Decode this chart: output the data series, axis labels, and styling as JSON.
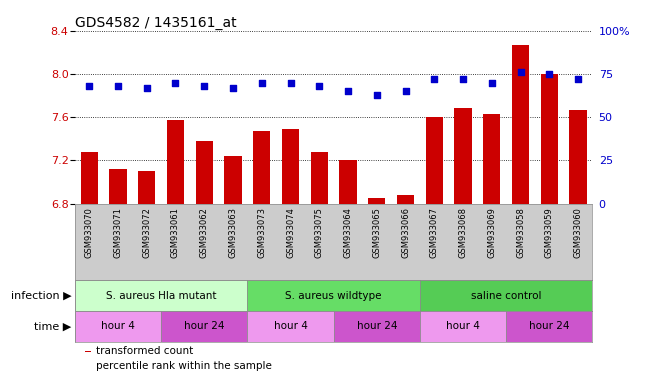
{
  "title": "GDS4582 / 1435161_at",
  "samples": [
    "GSM933070",
    "GSM933071",
    "GSM933072",
    "GSM933061",
    "GSM933062",
    "GSM933063",
    "GSM933073",
    "GSM933074",
    "GSM933075",
    "GSM933064",
    "GSM933065",
    "GSM933066",
    "GSM933067",
    "GSM933068",
    "GSM933069",
    "GSM933058",
    "GSM933059",
    "GSM933060"
  ],
  "bar_values": [
    7.28,
    7.12,
    7.1,
    7.57,
    7.38,
    7.24,
    7.47,
    7.49,
    7.28,
    7.2,
    6.85,
    6.88,
    7.6,
    7.68,
    7.63,
    8.27,
    8.0,
    7.67
  ],
  "dot_values": [
    68,
    68,
    67,
    70,
    68,
    67,
    70,
    70,
    68,
    65,
    63,
    65,
    72,
    72,
    70,
    76,
    75,
    72
  ],
  "ylim_left": [
    6.8,
    8.4
  ],
  "ylim_right": [
    0,
    100
  ],
  "yticks_left": [
    6.8,
    7.2,
    7.6,
    8.0,
    8.4
  ],
  "yticks_right": [
    0,
    25,
    50,
    75,
    100
  ],
  "ytick_labels_right": [
    "0",
    "25",
    "50",
    "75",
    "100%"
  ],
  "bar_color": "#cc0000",
  "dot_color": "#0000cc",
  "background_color": "#ffffff",
  "grid_color": "#000000",
  "infection_groups": [
    {
      "label": "S. aureus Hla mutant",
      "start": 0,
      "end": 6,
      "color": "#ccffcc"
    },
    {
      "label": "S. aureus wildtype",
      "start": 6,
      "end": 12,
      "color": "#66dd66"
    },
    {
      "label": "saline control",
      "start": 12,
      "end": 18,
      "color": "#55cc55"
    }
  ],
  "time_groups": [
    {
      "label": "hour 4",
      "start": 0,
      "end": 3,
      "color": "#ee99ee"
    },
    {
      "label": "hour 24",
      "start": 3,
      "end": 6,
      "color": "#cc55cc"
    },
    {
      "label": "hour 4",
      "start": 6,
      "end": 9,
      "color": "#ee99ee"
    },
    {
      "label": "hour 24",
      "start": 9,
      "end": 12,
      "color": "#cc55cc"
    },
    {
      "label": "hour 4",
      "start": 12,
      "end": 15,
      "color": "#ee99ee"
    },
    {
      "label": "hour 24",
      "start": 15,
      "end": 18,
      "color": "#cc55cc"
    }
  ],
  "infection_label": "infection",
  "time_label": "time",
  "legend_items": [
    {
      "label": "transformed count",
      "color": "#cc0000"
    },
    {
      "label": "percentile rank within the sample",
      "color": "#0000cc"
    }
  ],
  "tick_label_color_left": "#cc0000",
  "tick_label_color_right": "#0000cc",
  "title_fontsize": 10,
  "axis_fontsize": 8,
  "bar_width": 0.6,
  "sample_label_fontsize": 6,
  "sample_bg_color": "#cccccc"
}
